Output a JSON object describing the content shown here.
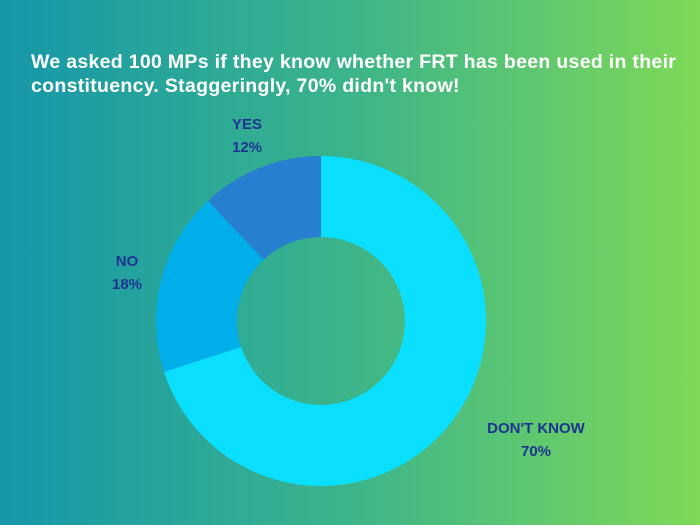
{
  "chart_data": {
    "type": "pie",
    "variant": "donut",
    "title": "We asked 100 MPs if they know whether FRT has been used in their constituency. Staggeringly, 70% didn't know!",
    "slices": [
      {
        "label": "DON'T KNOW",
        "value": 70,
        "value_label": "70%",
        "color": "#0adfff"
      },
      {
        "label": "NO",
        "value": 18,
        "value_label": "18%",
        "color": "#00aeea"
      },
      {
        "label": "YES",
        "value": 12,
        "value_label": "12%",
        "color": "#2680cf"
      }
    ],
    "legend": "none",
    "background_gradient": [
      "#1697aa",
      "#7ed957"
    ],
    "label_color": "#1c3490"
  }
}
